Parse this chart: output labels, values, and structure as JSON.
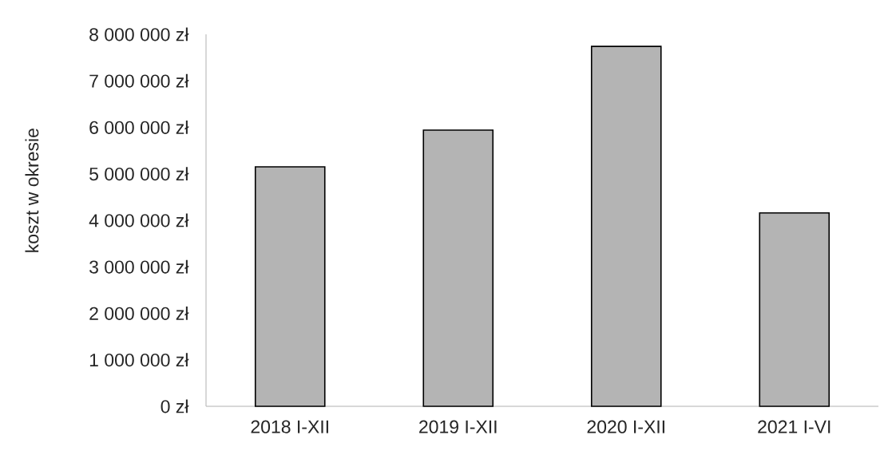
{
  "chart_data": {
    "type": "bar",
    "ylabel": "koszt w okresie",
    "categories": [
      "2018 I-XII",
      "2019 I-XII",
      "2020 I-XII",
      "2021 I-VI"
    ],
    "values": [
      5150000,
      5940000,
      7740000,
      4160000
    ],
    "color": "#b4b4b4",
    "ylim": [
      0,
      8000000
    ],
    "yticks": [
      {
        "value": 0,
        "label": "0 zł"
      },
      {
        "value": 1000000,
        "label": "1 000 000 zł"
      },
      {
        "value": 2000000,
        "label": "2 000 000 zł"
      },
      {
        "value": 3000000,
        "label": "3 000 000 zł"
      },
      {
        "value": 4000000,
        "label": "4 000 000 zł"
      },
      {
        "value": 5000000,
        "label": "5 000 000 zł"
      },
      {
        "value": 6000000,
        "label": "6 000 000 zł"
      },
      {
        "value": 7000000,
        "label": "7 000 000 zł"
      },
      {
        "value": 8000000,
        "label": "8 000 000 zł"
      }
    ]
  }
}
